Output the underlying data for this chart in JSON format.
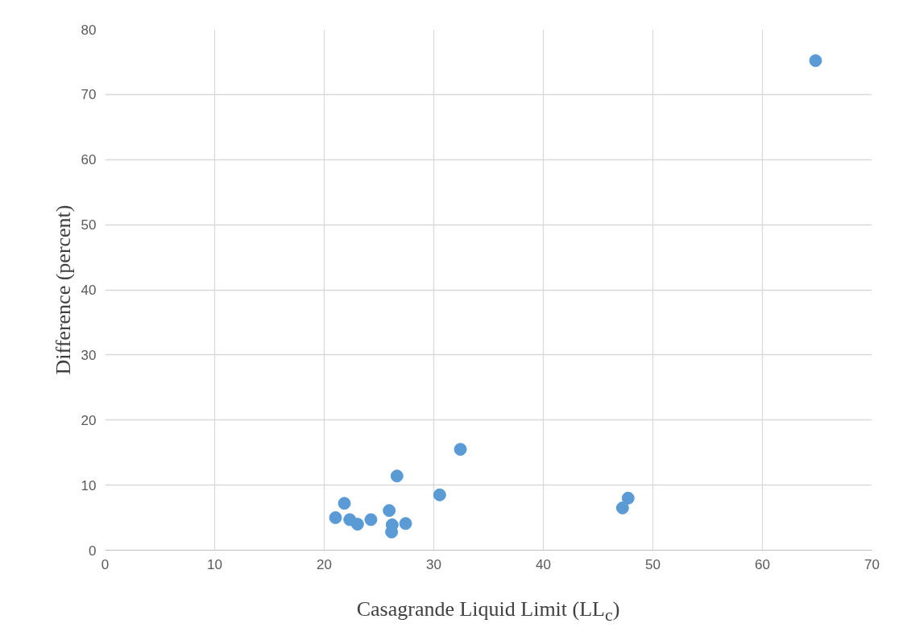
{
  "chart_data": {
    "type": "scatter",
    "xlabel": "Casagrande Liquid Limit (LL$_{c}$)",
    "ylabel": "Difference (percent)",
    "series": [
      {
        "color": "#5b9bd5",
        "x": [
          21.03,
          21.84,
          22.33,
          23.04,
          24.26,
          25.93,
          26.2,
          26.15,
          26.64,
          27.43,
          30.54,
          32.43,
          47.23,
          47.74,
          64.85
        ],
        "values": [
          5.0,
          7.2,
          4.7,
          4.0,
          4.7,
          6.1,
          3.9,
          2.8,
          11.4,
          4.1,
          8.5,
          15.5,
          6.5,
          8.0,
          75.2
        ]
      }
    ],
    "xlim": [
      0,
      70
    ],
    "ylim": [
      0,
      80
    ],
    "xticks": [
      0,
      10,
      20,
      30,
      40,
      50,
      60,
      70
    ],
    "yticks": [
      0,
      10,
      20,
      30,
      40,
      50,
      60,
      70,
      80
    ],
    "grid": true,
    "marker": "circle"
  }
}
